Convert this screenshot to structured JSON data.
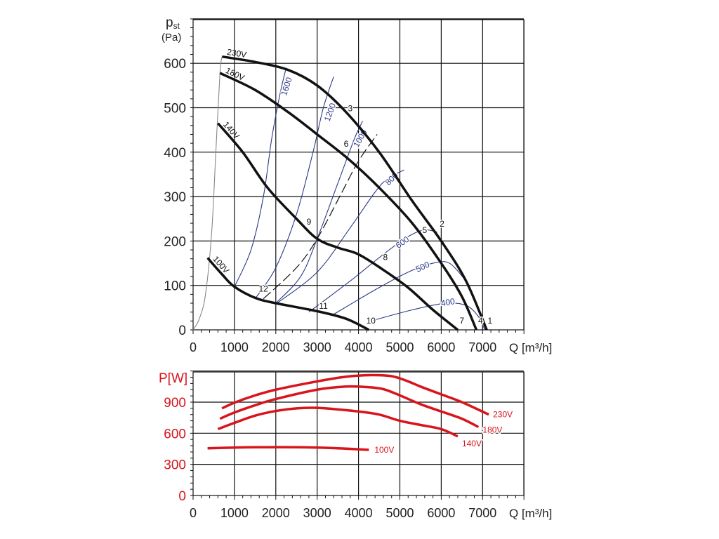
{
  "chart_data": [
    {
      "type": "line",
      "title": "",
      "ylabel": "pst",
      "ylabel_unit": "(Pa)",
      "xlabel": "Q [m³/h]",
      "xlim": [
        0,
        8000
      ],
      "ylim": [
        0,
        700
      ],
      "xticks": [
        0,
        1000,
        2000,
        3000,
        4000,
        5000,
        6000,
        7000
      ],
      "yticks": [
        0,
        100,
        200,
        300,
        400,
        500,
        600
      ],
      "grid": true,
      "series": [
        {
          "name": "230V",
          "color": "#111111",
          "points": [
            [
              700,
              615
            ],
            [
              1500,
              603
            ],
            [
              2300,
              585
            ],
            [
              3000,
              550
            ],
            [
              3700,
              490
            ],
            [
              4500,
              400
            ],
            [
              5300,
              290
            ],
            [
              6000,
              200
            ],
            [
              6600,
              110
            ],
            [
              7100,
              0
            ]
          ]
        },
        {
          "name": "180V",
          "color": "#111111",
          "points": [
            [
              650,
              578
            ],
            [
              1500,
              540
            ],
            [
              2300,
              490
            ],
            [
              3000,
              440
            ],
            [
              3750,
              385
            ],
            [
              4500,
              320
            ],
            [
              5300,
              240
            ],
            [
              6000,
              150
            ],
            [
              6500,
              75
            ],
            [
              6850,
              0
            ]
          ]
        },
        {
          "name": "140V",
          "color": "#111111",
          "points": [
            [
              600,
              465
            ],
            [
              1200,
              400
            ],
            [
              1800,
              320
            ],
            [
              2500,
              250
            ],
            [
              3000,
              205
            ],
            [
              3500,
              185
            ],
            [
              4000,
              170
            ],
            [
              4600,
              135
            ],
            [
              5200,
              95
            ],
            [
              5800,
              45
            ],
            [
              6400,
              0
            ]
          ]
        },
        {
          "name": "100V",
          "color": "#111111",
          "points": [
            [
              350,
              162
            ],
            [
              700,
              125
            ],
            [
              1000,
              97
            ],
            [
              1500,
              72
            ],
            [
              2000,
              60
            ],
            [
              3000,
              42
            ],
            [
              3700,
              25
            ],
            [
              4250,
              0
            ]
          ]
        }
      ],
      "speed_lines": [
        {
          "label": "1600",
          "color": "#2b3a86",
          "points": [
            [
              1000,
              97
            ],
            [
              1400,
              180
            ],
            [
              1700,
              300
            ],
            [
              1900,
              430
            ],
            [
              2100,
              530
            ],
            [
              2250,
              590
            ]
          ]
        },
        {
          "label": "1200",
          "color": "#2b3a86",
          "points": [
            [
              1500,
              70
            ],
            [
              2000,
              140
            ],
            [
              2500,
              260
            ],
            [
              2900,
              400
            ],
            [
              3150,
              500
            ],
            [
              3400,
              570
            ]
          ]
        },
        {
          "label": "1000",
          "color": "#2b3a86",
          "points": [
            [
              2000,
              60
            ],
            [
              2600,
              120
            ],
            [
              3000,
              205
            ],
            [
              3500,
              330
            ],
            [
              3900,
              430
            ],
            [
              4100,
              470
            ]
          ]
        },
        {
          "label": "800",
          "color": "#2b3a86",
          "points": [
            [
              2000,
              58
            ],
            [
              3000,
              130
            ],
            [
              3800,
              230
            ],
            [
              4400,
              310
            ],
            [
              4700,
              340
            ],
            [
              5100,
              360
            ]
          ]
        },
        {
          "label": "600",
          "color": "#2b3a86",
          "points": [
            [
              2800,
              40
            ],
            [
              3800,
              110
            ],
            [
              4600,
              170
            ],
            [
              5200,
              210
            ],
            [
              5600,
              225
            ],
            [
              5900,
              220
            ]
          ]
        },
        {
          "label": "500",
          "color": "#2b3a86",
          "points": [
            [
              3400,
              35
            ],
            [
              4400,
              90
            ],
            [
              5200,
              130
            ],
            [
              5800,
              150
            ],
            [
              6200,
              150
            ],
            [
              6600,
              110
            ]
          ]
        },
        {
          "label": "400",
          "color": "#2b3a86",
          "points": [
            [
              4300,
              20
            ],
            [
              5300,
              45
            ],
            [
              6100,
              60
            ],
            [
              6600,
              55
            ],
            [
              6900,
              30
            ],
            [
              7050,
              0
            ]
          ]
        },
        {
          "label": "",
          "color": "#888888",
          "points": [
            [
              0,
              0
            ],
            [
              150,
              25
            ],
            [
              300,
              80
            ],
            [
              450,
              220
            ],
            [
              550,
              400
            ],
            [
              650,
              578
            ],
            [
              700,
              615
            ]
          ]
        }
      ],
      "dashed_line": {
        "points": [
          [
            1700,
            70
          ],
          [
            2500,
            140
          ],
          [
            3000,
            205
          ],
          [
            3600,
            310
          ],
          [
            4000,
            380
          ],
          [
            4450,
            440
          ]
        ]
      },
      "point_labels": [
        {
          "text": "1",
          "q": 7180,
          "p": 14
        },
        {
          "text": "2",
          "q": 6020,
          "p": 232
        },
        {
          "text": "3",
          "q": 3800,
          "p": 492
        },
        {
          "text": "4",
          "q": 6950,
          "p": 14
        },
        {
          "text": "5",
          "q": 5600,
          "p": 218
        },
        {
          "text": "6",
          "q": 3700,
          "p": 412
        },
        {
          "text": "7",
          "q": 6500,
          "p": 14
        },
        {
          "text": "8",
          "q": 4650,
          "p": 157
        },
        {
          "text": "9",
          "q": 2800,
          "p": 237
        },
        {
          "text": "10",
          "q": 4300,
          "p": 14
        },
        {
          "text": "11",
          "q": 3150,
          "p": 47
        },
        {
          "text": "12",
          "q": 1700,
          "p": 86
        }
      ]
    },
    {
      "type": "line",
      "ylabel": "P[W]",
      "xlabel": "Q [m³/h]",
      "xlim": [
        0,
        8000
      ],
      "ylim": [
        0,
        1200
      ],
      "xticks": [
        0,
        1000,
        2000,
        3000,
        4000,
        5000,
        6000,
        7000
      ],
      "yticks": [
        0,
        300,
        600,
        900
      ],
      "grid": true,
      "series": [
        {
          "name": "230V",
          "color": "#d8141c",
          "points": [
            [
              700,
              840
            ],
            [
              1000,
              895
            ],
            [
              1500,
              965
            ],
            [
              2000,
              1020
            ],
            [
              3000,
              1100
            ],
            [
              3700,
              1145
            ],
            [
              4300,
              1160
            ],
            [
              4800,
              1150
            ],
            [
              5200,
              1100
            ],
            [
              5500,
              1050
            ],
            [
              6000,
              975
            ],
            [
              6500,
              900
            ],
            [
              7150,
              780
            ]
          ]
        },
        {
          "name": "180V",
          "color": "#d8141c",
          "points": [
            [
              650,
              740
            ],
            [
              1000,
              800
            ],
            [
              1500,
              870
            ],
            [
              2000,
              930
            ],
            [
              3000,
              1020
            ],
            [
              3700,
              1050
            ],
            [
              4200,
              1045
            ],
            [
              4600,
              1025
            ],
            [
              5000,
              965
            ],
            [
              5500,
              880
            ],
            [
              6000,
              810
            ],
            [
              6500,
              740
            ],
            [
              6900,
              660
            ]
          ]
        },
        {
          "name": "140V",
          "color": "#d8141c",
          "points": [
            [
              600,
              640
            ],
            [
              1000,
              700
            ],
            [
              1500,
              770
            ],
            [
              2000,
              815
            ],
            [
              2500,
              840
            ],
            [
              3000,
              845
            ],
            [
              3500,
              830
            ],
            [
              4000,
              810
            ],
            [
              4500,
              780
            ],
            [
              5000,
              720
            ],
            [
              5500,
              680
            ],
            [
              6000,
              640
            ],
            [
              6400,
              570
            ]
          ]
        },
        {
          "name": "100V",
          "color": "#d8141c",
          "points": [
            [
              350,
              455
            ],
            [
              1000,
              462
            ],
            [
              1500,
              465
            ],
            [
              2500,
              465
            ],
            [
              3300,
              458
            ],
            [
              4250,
              440
            ]
          ]
        }
      ]
    }
  ]
}
